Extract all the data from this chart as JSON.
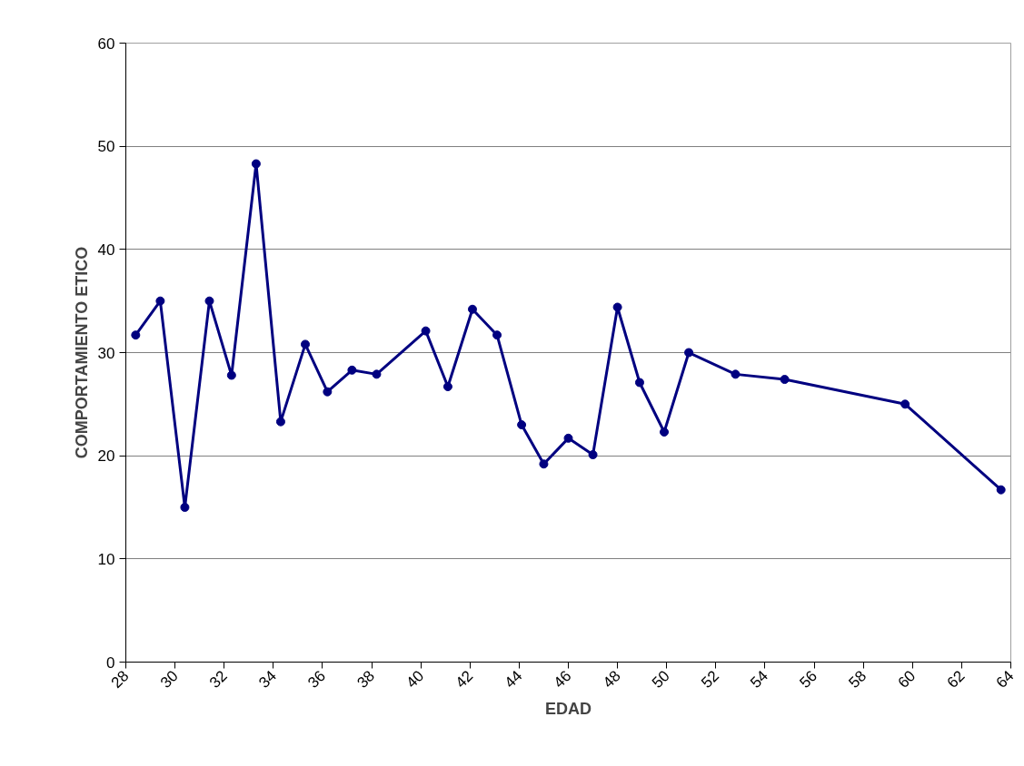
{
  "chart_data": {
    "type": "line",
    "xlabel": "EDAD",
    "ylabel": "COMPORTAMIENTO ETICO",
    "xlim": [
      28,
      64
    ],
    "xticks": [
      28,
      30,
      32,
      34,
      36,
      38,
      40,
      42,
      44,
      46,
      48,
      50,
      52,
      54,
      56,
      58,
      60,
      62,
      64
    ],
    "ylim": [
      0,
      60
    ],
    "yticks": [
      0,
      10,
      20,
      30,
      40,
      50,
      60
    ],
    "grid": "y",
    "marker": "circle",
    "line_style": "solid",
    "series": [
      {
        "color": "#000080",
        "x": [
          28.4,
          29.4,
          30.4,
          31.4,
          32.3,
          33.3,
          34.3,
          35.3,
          36.2,
          37.2,
          38.2,
          40.2,
          41.1,
          42.1,
          43.1,
          44.1,
          45.0,
          46.0,
          47.0,
          48.0,
          48.9,
          49.9,
          50.9,
          52.8,
          54.8,
          59.7,
          63.6
        ],
        "values": [
          31.7,
          35.0,
          15.0,
          35.0,
          27.8,
          48.3,
          23.3,
          30.8,
          26.2,
          28.3,
          27.9,
          32.1,
          26.7,
          34.2,
          31.7,
          23.0,
          19.2,
          21.7,
          20.1,
          34.4,
          27.1,
          22.3,
          30.0,
          27.9,
          27.4,
          25.0,
          16.7
        ]
      }
    ]
  }
}
